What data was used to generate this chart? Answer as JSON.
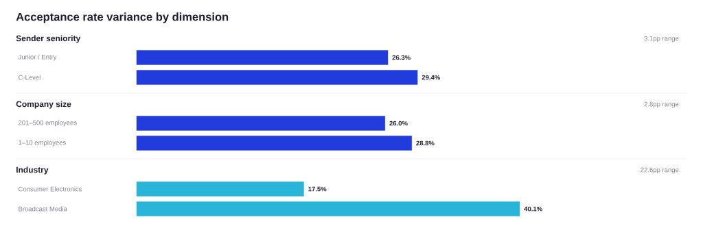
{
  "chart_data": [
    {
      "type": "bar",
      "orientation": "horizontal",
      "title": "Acceptance rate variance by dimension",
      "subtitle": "Sender seniority",
      "annotations": [
        "3.1pp range"
      ],
      "categories": [
        "Junior / Entry",
        "C-Level"
      ],
      "values": [
        26.3,
        29.4
      ],
      "value_labels": [
        "26.3%",
        "29.4%"
      ],
      "color": "#213bdc"
    },
    {
      "type": "bar",
      "orientation": "horizontal",
      "subtitle": "Company size",
      "annotations": [
        "2.8pp range"
      ],
      "categories": [
        "201–500 employees",
        "1–10 employees"
      ],
      "values": [
        26.0,
        28.8
      ],
      "value_labels": [
        "26.0%",
        "28.8%"
      ],
      "color": "#213bdc"
    },
    {
      "type": "bar",
      "orientation": "horizontal",
      "subtitle": "Industry",
      "annotations": [
        "22.6pp range"
      ],
      "categories": [
        "Consumer Electronics",
        "Broadcast Media"
      ],
      "values": [
        17.5,
        40.1
      ],
      "value_labels": [
        "17.5%",
        "40.1%"
      ],
      "color": "#29b4da"
    }
  ]
}
